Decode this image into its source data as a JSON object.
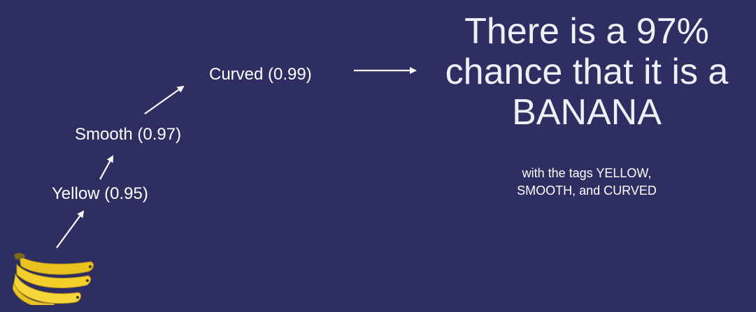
{
  "tags": {
    "yellow": "Yellow (0.95)",
    "smooth": "Smooth (0.97)",
    "curved": "Curved (0.99)"
  },
  "conclusion": {
    "line1": "There is a 97%",
    "line2": "chance that it is a",
    "line3": "BANANA"
  },
  "detail": {
    "line1": "with the tags YELLOW,",
    "line2": "SMOOTH, and CURVED"
  },
  "colors": {
    "background": "#2e2e63",
    "text": "#ffffff",
    "banana": "#f2cf2a"
  },
  "icons": {
    "fruit": "banana-icon",
    "connector": "arrow"
  }
}
